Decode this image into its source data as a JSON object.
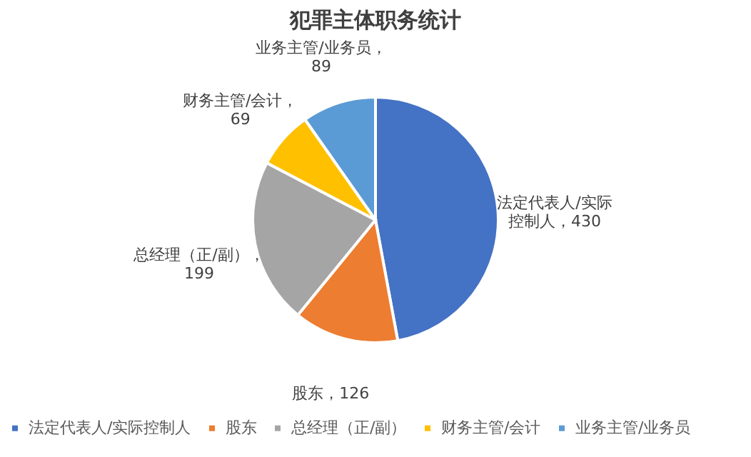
{
  "chart_data": {
    "type": "pie",
    "title": "犯罪主体职务统计",
    "categories": [
      "法定代表人/实际控制人",
      "股东",
      "总经理（正/副）",
      "财务主管/会计",
      "业务主管/业务员"
    ],
    "values": [
      430,
      126,
      199,
      69,
      89
    ],
    "colors": [
      "#4472c4",
      "#ed7d31",
      "#a5a5a5",
      "#ffc000",
      "#5b9bd5"
    ],
    "value_labels": [
      "法定代表人/实际控制人，430",
      "股东，126",
      "总经理（正/副），199",
      "财务主管/会计，69",
      "业务主管/业务员，89"
    ],
    "legend": "bottom"
  }
}
